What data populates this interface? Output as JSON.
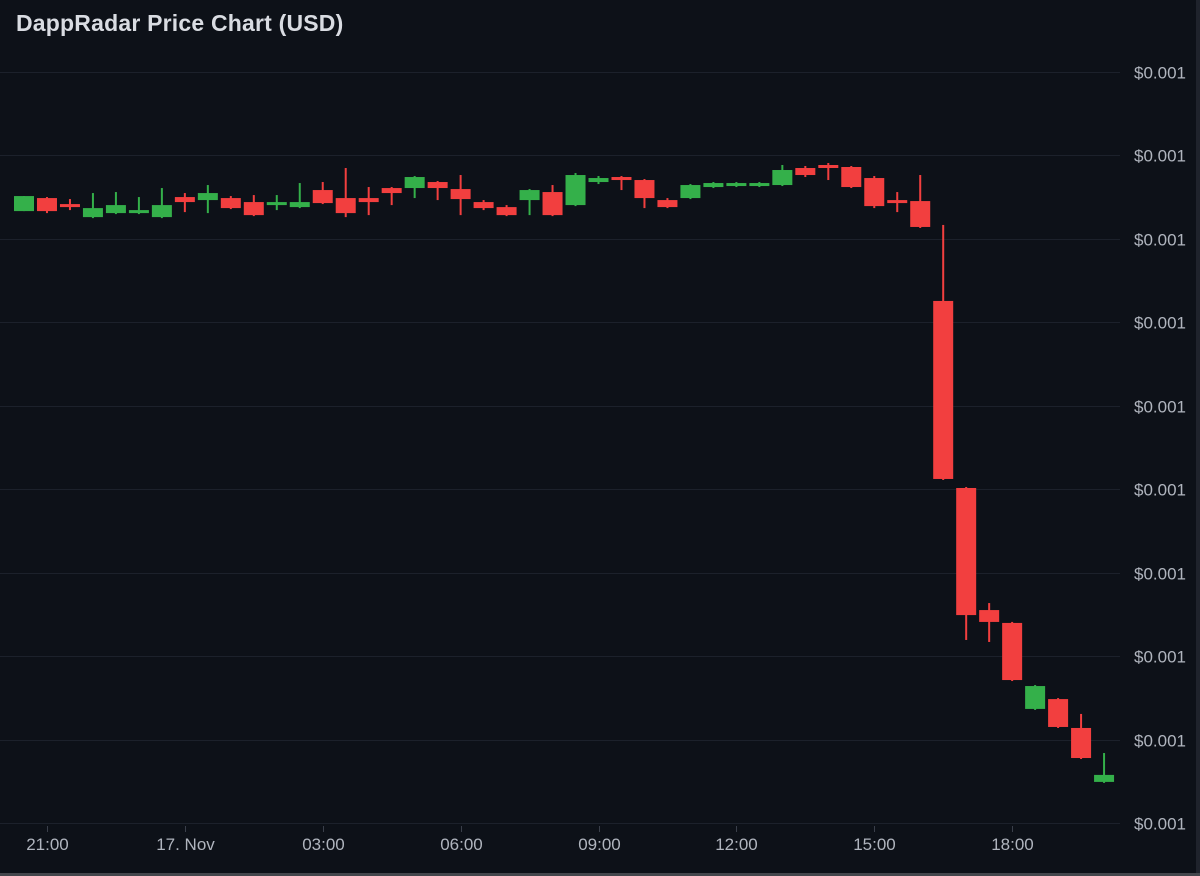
{
  "title": "DappRadar Price Chart (USD)",
  "colors": {
    "background": "#0d1118",
    "grid": "#1c212b",
    "up": "#34b04a",
    "down": "#f23f3f",
    "axis_text": "#b0b5be",
    "title_text": "#d9dce2",
    "tick": "#3a3f4a"
  },
  "y_axis": {
    "labels": [
      "$0.001",
      "$0.001",
      "$0.001",
      "$0.001",
      "$0.001",
      "$0.001",
      "$0.001",
      "$0.001",
      "$0.001",
      "$0.001"
    ],
    "gridline_prices": [
      0.00125,
      0.0012,
      0.00115,
      0.0011,
      0.00105,
      0.001,
      0.00095,
      0.0009,
      0.00085,
      0.0008
    ],
    "price_top": 0.0012931,
    "price_bottom": 0.0007991
  },
  "x_axis": {
    "ticks": [
      {
        "label": "21:00",
        "index": 1
      },
      {
        "label": "17. Nov",
        "index": 7
      },
      {
        "label": "03:00",
        "index": 13
      },
      {
        "label": "06:00",
        "index": 19
      },
      {
        "label": "09:00",
        "index": 25
      },
      {
        "label": "12:00",
        "index": 31
      },
      {
        "label": "15:00",
        "index": 37
      },
      {
        "label": "18:00",
        "index": 43
      }
    ]
  },
  "chart_data": {
    "type": "candlestick",
    "title": "DappRadar Price Chart (USD)",
    "unit": "USD",
    "ylabel": "Price (USD)",
    "ylim": [
      0.0007991,
      0.0012931
    ],
    "grid": true,
    "legend": false,
    "candles": [
      {
        "t": "20:30",
        "o": 0.0011667,
        "h": 0.0011757,
        "l": 0.0011667,
        "c": 0.0011757
      },
      {
        "t": "21:00",
        "o": 0.0011745,
        "h": 0.0011751,
        "l": 0.0011655,
        "c": 0.0011667
      },
      {
        "t": "21:30",
        "o": 0.0011709,
        "h": 0.0011739,
        "l": 0.0011673,
        "c": 0.0011691
      },
      {
        "t": "22:00",
        "o": 0.0011631,
        "h": 0.0011775,
        "l": 0.0011625,
        "c": 0.0011685
      },
      {
        "t": "22:30",
        "o": 0.0011655,
        "h": 0.0011781,
        "l": 0.0011649,
        "c": 0.0011703
      },
      {
        "t": "23:00",
        "o": 0.0011655,
        "h": 0.0011751,
        "l": 0.0011649,
        "c": 0.0011673
      },
      {
        "t": "23:30",
        "o": 0.0011631,
        "h": 0.0011805,
        "l": 0.0011625,
        "c": 0.0011703
      },
      {
        "t": "00:00",
        "o": 0.0011751,
        "h": 0.0011775,
        "l": 0.0011661,
        "c": 0.0011721
      },
      {
        "t": "00:30",
        "o": 0.0011733,
        "h": 0.0011823,
        "l": 0.0011655,
        "c": 0.0011775
      },
      {
        "t": "01:00",
        "o": 0.0011745,
        "h": 0.0011757,
        "l": 0.0011679,
        "c": 0.0011685
      },
      {
        "t": "01:30",
        "o": 0.0011721,
        "h": 0.0011763,
        "l": 0.0011637,
        "c": 0.0011643
      },
      {
        "t": "02:00",
        "o": 0.0011703,
        "h": 0.0011763,
        "l": 0.0011673,
        "c": 0.0011721
      },
      {
        "t": "02:30",
        "o": 0.0011691,
        "h": 0.0011835,
        "l": 0.0011685,
        "c": 0.0011721
      },
      {
        "t": "03:00",
        "o": 0.0011793,
        "h": 0.0011841,
        "l": 0.0011709,
        "c": 0.0011715
      },
      {
        "t": "03:30",
        "o": 0.0011745,
        "h": 0.0011925,
        "l": 0.0011631,
        "c": 0.0011655
      },
      {
        "t": "04:00",
        "o": 0.0011745,
        "h": 0.0011811,
        "l": 0.0011643,
        "c": 0.0011721
      },
      {
        "t": "04:30",
        "o": 0.0011805,
        "h": 0.0011811,
        "l": 0.0011703,
        "c": 0.0011775
      },
      {
        "t": "05:00",
        "o": 0.0011805,
        "h": 0.0011877,
        "l": 0.0011745,
        "c": 0.0011871
      },
      {
        "t": "05:30",
        "o": 0.0011841,
        "h": 0.0011847,
        "l": 0.0011733,
        "c": 0.0011805
      },
      {
        "t": "06:00",
        "o": 0.0011799,
        "h": 0.0011883,
        "l": 0.0011643,
        "c": 0.0011739
      },
      {
        "t": "06:30",
        "o": 0.0011721,
        "h": 0.0011733,
        "l": 0.0011673,
        "c": 0.0011685
      },
      {
        "t": "07:00",
        "o": 0.0011691,
        "h": 0.0011703,
        "l": 0.0011637,
        "c": 0.0011643
      },
      {
        "t": "07:30",
        "o": 0.0011733,
        "h": 0.0011799,
        "l": 0.0011643,
        "c": 0.0011793
      },
      {
        "t": "08:00",
        "o": 0.0011781,
        "h": 0.0011823,
        "l": 0.0011637,
        "c": 0.0011643
      },
      {
        "t": "08:30",
        "o": 0.0011703,
        "h": 0.0011895,
        "l": 0.0011697,
        "c": 0.0011883
      },
      {
        "t": "09:00",
        "o": 0.0011841,
        "h": 0.0011877,
        "l": 0.0011829,
        "c": 0.0011865
      },
      {
        "t": "09:30",
        "o": 0.0011871,
        "h": 0.0011877,
        "l": 0.0011793,
        "c": 0.0011853
      },
      {
        "t": "10:00",
        "o": 0.0011853,
        "h": 0.0011859,
        "l": 0.0011685,
        "c": 0.0011745
      },
      {
        "t": "10:30",
        "o": 0.0011733,
        "h": 0.0011745,
        "l": 0.0011685,
        "c": 0.0011691
      },
      {
        "t": "11:00",
        "o": 0.0011745,
        "h": 0.0011829,
        "l": 0.0011739,
        "c": 0.0011823
      },
      {
        "t": "11:30",
        "o": 0.0011811,
        "h": 0.0011841,
        "l": 0.0011805,
        "c": 0.0011835
      },
      {
        "t": "12:00",
        "o": 0.0011817,
        "h": 0.0011841,
        "l": 0.0011811,
        "c": 0.0011835
      },
      {
        "t": "12:30",
        "o": 0.0011817,
        "h": 0.0011841,
        "l": 0.0011811,
        "c": 0.0011835
      },
      {
        "t": "13:00",
        "o": 0.0011823,
        "h": 0.0011943,
        "l": 0.0011817,
        "c": 0.0011913
      },
      {
        "t": "13:30",
        "o": 0.0011925,
        "h": 0.0011937,
        "l": 0.0011871,
        "c": 0.0011883
      },
      {
        "t": "14:00",
        "o": 0.0011943,
        "h": 0.0011955,
        "l": 0.0011853,
        "c": 0.0011925
      },
      {
        "t": "14:30",
        "o": 0.0011931,
        "h": 0.0011937,
        "l": 0.0011805,
        "c": 0.0011811
      },
      {
        "t": "15:00",
        "o": 0.0011865,
        "h": 0.0011877,
        "l": 0.0011685,
        "c": 0.0011697
      },
      {
        "t": "15:30",
        "o": 0.0011733,
        "h": 0.0011781,
        "l": 0.0011661,
        "c": 0.0011715
      },
      {
        "t": "16:00",
        "o": 0.0011727,
        "h": 0.0011883,
        "l": 0.0011566,
        "c": 0.0011572
      },
      {
        "t": "16:30",
        "o": 0.0011129,
        "h": 0.0011584,
        "l": 0.0010057,
        "c": 0.0010063
      },
      {
        "t": "17:00",
        "o": 0.0010009,
        "h": 0.0010015,
        "l": 0.0009099,
        "c": 0.0009248
      },
      {
        "t": "17:30",
        "o": 0.0009278,
        "h": 0.000932,
        "l": 0.0009087,
        "c": 0.0009207
      },
      {
        "t": "18:00",
        "o": 0.0009201,
        "h": 0.0009207,
        "l": 0.0008853,
        "c": 0.0008859
      },
      {
        "t": "18:30",
        "o": 0.0008686,
        "h": 0.0008829,
        "l": 0.000868,
        "c": 0.0008823
      },
      {
        "t": "19:00",
        "o": 0.0008745,
        "h": 0.0008751,
        "l": 0.0008572,
        "c": 0.0008578
      },
      {
        "t": "19:30",
        "o": 0.0008572,
        "h": 0.0008656,
        "l": 0.0008386,
        "c": 0.0008392
      },
      {
        "t": "20:00",
        "o": 0.0008249,
        "h": 0.0008422,
        "l": 0.0008243,
        "c": 0.0008291
      }
    ]
  }
}
